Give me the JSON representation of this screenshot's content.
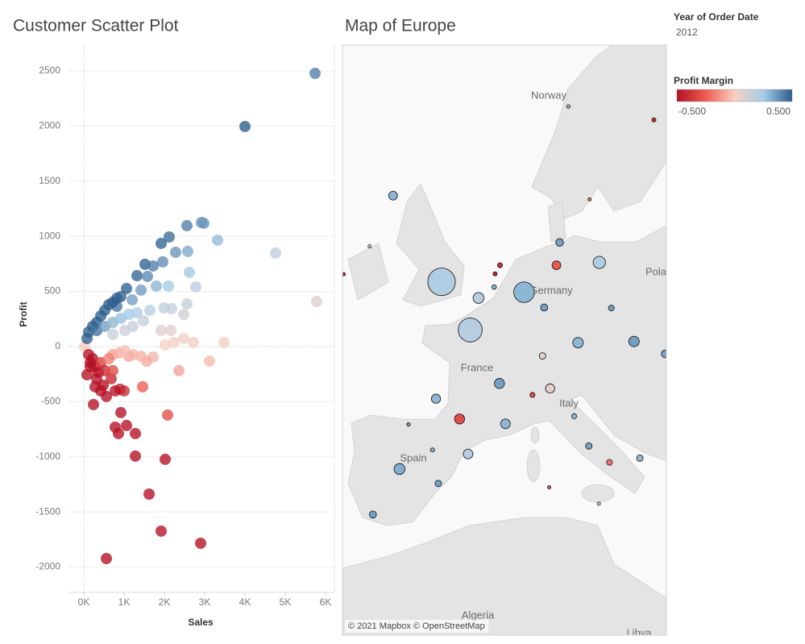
{
  "filter": {
    "title": "Year of Order Date",
    "value": "2012"
  },
  "color_legend": {
    "title": "Profit Margin",
    "colors": [
      "#b50f24",
      "#ee5b4e",
      "#f7cfc2",
      "#a7cde8",
      "#2b5d8d"
    ],
    "ticks": [
      {
        "value": -0.5,
        "label": "-0.500"
      },
      {
        "value": 0.5,
        "label": "0.500"
      }
    ]
  },
  "chart_data": [
    {
      "type": "scatter",
      "title": "Customer Scatter Plot",
      "x_label": "Sales",
      "y_label": "Profit",
      "xlim": [
        -380,
        6220
      ],
      "ylim": [
        -2230,
        2734
      ],
      "grid": true,
      "xticks": [
        {
          "value": 0,
          "label": "0K"
        },
        {
          "value": 1000,
          "label": "1K"
        },
        {
          "value": 2000,
          "label": "2K"
        },
        {
          "value": 3000,
          "label": "3K"
        },
        {
          "value": 4000,
          "label": "4K"
        },
        {
          "value": 5000,
          "label": "5K"
        },
        {
          "value": 6000,
          "label": "6K"
        }
      ],
      "yticks": [
        -2000,
        -1500,
        -1000,
        -500,
        0,
        500,
        1000,
        1500,
        2000,
        2500
      ],
      "x": [
        5740,
        4000,
        5780,
        4760,
        3320,
        2920,
        2980,
        2560,
        2120,
        1920,
        2580,
        2280,
        1960,
        1520,
        1720,
        2780,
        2620,
        1320,
        1580,
        1060,
        1800,
        2100,
        1420,
        2560,
        2180,
        1990,
        1640,
        820,
        1200,
        1920,
        2480,
        2480,
        2160,
        2720,
        3480,
        3120,
        2240,
        2020,
        1720,
        1560,
        2360,
        1420,
        1120,
        720,
        1460,
        1000,
        900,
        780,
        680,
        560,
        240,
        920,
        2080,
        780,
        1060,
        860,
        1280,
        1280,
        2020,
        1620,
        1920,
        2900,
        560,
        20,
        80,
        120,
        220,
        320,
        420,
        520,
        620,
        720,
        820,
        920,
        320,
        520,
        720,
        920,
        1120,
        1320,
        720,
        1020,
        1220,
        1480,
        120,
        220,
        280,
        360,
        420,
        520,
        620,
        160,
        80,
        320,
        480,
        720,
        880,
        1020,
        1220,
        280,
        420,
        160
      ],
      "y": [
        2478,
        1996,
        409,
        848,
        965,
        1126,
        1118,
        1096,
        994,
        936,
        863,
        855,
        768,
        746,
        731,
        541,
        673,
        643,
        636,
        526,
        548,
        548,
        512,
        387,
        344,
        351,
        329,
        365,
        424,
        146,
        292,
        73,
        146,
        37,
        37,
        -132,
        37,
        15,
        -95,
        -132,
        -219,
        -88,
        -88,
        -73,
        -365,
        -402,
        -387,
        -402,
        -292,
        -453,
        -526,
        -599,
        -621,
        -731,
        -716,
        -789,
        -789,
        -994,
        -1023,
        -1338,
        -1674,
        -1784,
        -1923,
        0,
        73,
        132,
        183,
        219,
        278,
        329,
        380,
        402,
        439,
        453,
        146,
        183,
        219,
        256,
        292,
        307,
        110,
        146,
        183,
        234,
        -73,
        -110,
        -183,
        -234,
        -146,
        -219,
        -110,
        -146,
        -256,
        -292,
        -351,
        -219,
        -58,
        -37,
        -73,
        -365,
        -402,
        -183
      ]
    },
    {
      "type": "map",
      "title": "Map of Europe",
      "attribution": "© 2021 Mapbox © OpenStreetMap",
      "place_labels": [
        "Norway",
        "Germany",
        "France",
        "Italy",
        "Spain",
        "Pola",
        "Algeria",
        "Libya"
      ],
      "lon": [
        -0.1,
        2.35,
        6.96,
        13.4,
        11.58,
        16.37,
        -3.7,
        2.17,
        4.85,
        1.44,
        5.37,
        -0.58,
        3.06,
        9.19,
        -4.25,
        10,
        8.68,
        9.73,
        4.9,
        4.48,
        4.4,
        -5.98,
        -0.38,
        14.27,
        16.87,
        11.25,
        12.5,
        8.54,
        14.43,
        18.07,
        10.75,
        12.57,
        -9.14,
        -6.26,
        -8.47,
        -0.88,
        -2.93,
        7.68,
        13.36,
        9.11,
        19.04
      ],
      "lat": [
        51.5,
        48.86,
        50.94,
        52.52,
        48.14,
        48.21,
        40.42,
        41.39,
        45.76,
        43.6,
        43.3,
        44.84,
        50.63,
        45.46,
        55.86,
        53.55,
        50.11,
        52.37,
        52.37,
        51.92,
        51.22,
        37.39,
        39.47,
        40.85,
        41.12,
        43.77,
        41.9,
        47.38,
        50.08,
        59.33,
        59.91,
        55.68,
        38.72,
        53.35,
        51.9,
        41.65,
        43.26,
        45.07,
        38.12,
        39.22,
        47.5
      ],
      "sales": [
        9000,
        6800,
        5000,
        1800,
        1300,
        1300,
        1400,
        1100,
        1200,
        1200,
        1100,
        1000,
        1400,
        1000,
        900,
        700,
        600,
        900,
        300,
        200,
        250,
        600,
        500,
        400,
        500,
        300,
        500,
        500,
        400,
        200,
        150,
        100,
        100,
        100,
        100,
        200,
        150,
        300,
        100,
        100,
        700
      ],
      "profit_margin": [
        0.22,
        0.2,
        0.3,
        0.22,
        0.3,
        0.35,
        0.32,
        0.2,
        0.35,
        -0.3,
        0.3,
        0.3,
        0.2,
        0.05,
        0.3,
        0.35,
        0.35,
        -0.25,
        -0.4,
        -0.45,
        0.3,
        0.35,
        0.35,
        -0.2,
        0.3,
        0.3,
        0.35,
        0.05,
        0.35,
        -0.4,
        0.3,
        -0.2,
        -0.3,
        0.2,
        -0.4,
        0.3,
        0.35,
        -0.3,
        0.1,
        -0.3,
        0.35
      ]
    }
  ]
}
